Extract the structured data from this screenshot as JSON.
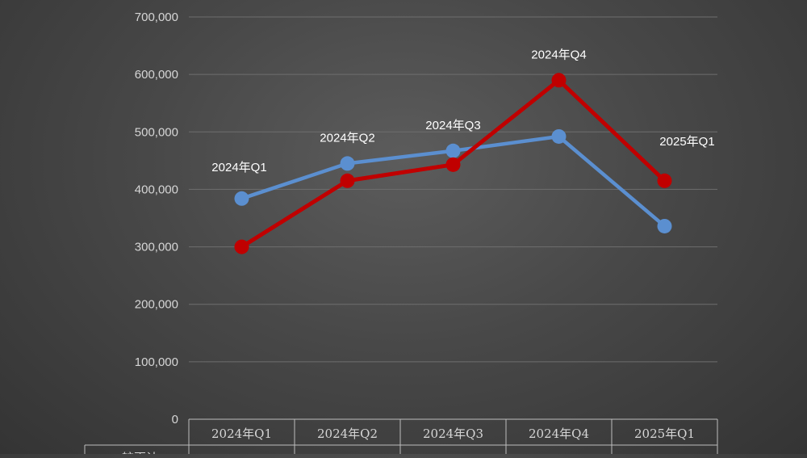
{
  "chart_data": {
    "type": "line",
    "categories": [
      "2024年Q1",
      "2024年Q2",
      "2024年Q3",
      "2024年Q4",
      "2025年Q1"
    ],
    "y_ticks": [
      "0",
      "100,000",
      "200,000",
      "300,000",
      "400,000",
      "500,000",
      "600,000",
      "700,000"
    ],
    "ylim": [
      0,
      700000
    ],
    "grid": true,
    "legend": "none",
    "series": [
      {
        "color": "#5b8fd0",
        "values": [
          384000,
          445000,
          467000,
          492000,
          336000
        ]
      },
      {
        "color": "#c00000",
        "values": [
          300000,
          415000,
          443000,
          590000,
          415000
        ]
      }
    ],
    "data_labels": [
      "2024年Q1",
      "2024年Q2",
      "2024年Q3",
      "2024年Q4",
      "2025年Q1"
    ],
    "table_row_label": "较更计"
  }
}
